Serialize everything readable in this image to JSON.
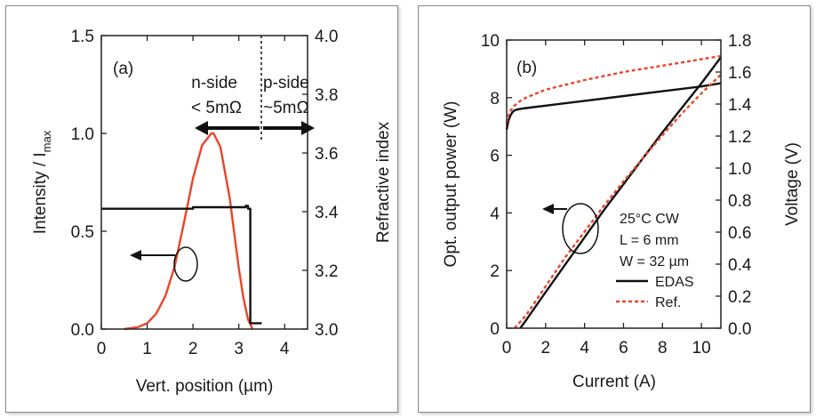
{
  "colors": {
    "red": "#e8462a",
    "black": "#111111",
    "axis": "#333333"
  },
  "chart_data": [
    {
      "type": "line",
      "panel_label": "(a)",
      "xlabel": "Vert. position (µm)",
      "ylabel_main": "Intensity / I",
      "ylabel_sub": "max",
      "y2label": "Refractive index",
      "xlim": [
        0,
        4.5
      ],
      "ylim": [
        0,
        1.5
      ],
      "y2lim": [
        3.0,
        4.0
      ],
      "xticks": [
        "0",
        "1",
        "2",
        "3",
        "4"
      ],
      "yticks": [
        "0.0",
        "0.5",
        "1.0",
        "1.5"
      ],
      "y2ticks": [
        "3.0",
        "3.2",
        "3.4",
        "3.6",
        "3.8",
        "4.0"
      ],
      "annotations": {
        "n_side": "n-side",
        "n_value": "< 5mΩ",
        "p_side": "p-side",
        "p_value": "~5mΩ"
      },
      "series": [
        {
          "axis": "left",
          "color": "#e8462a",
          "x": [
            0.5,
            0.8,
            1.0,
            1.2,
            1.4,
            1.6,
            1.8,
            2.0,
            2.2,
            2.4,
            2.45,
            2.6,
            2.8,
            3.0,
            3.1,
            3.2,
            3.3
          ],
          "y": [
            0.0,
            0.01,
            0.03,
            0.08,
            0.17,
            0.32,
            0.54,
            0.77,
            0.94,
            1.0,
            1.0,
            0.93,
            0.67,
            0.31,
            0.16,
            0.05,
            0.0
          ]
        },
        {
          "axis": "right",
          "color": "#111111",
          "x": [
            0,
            2.0,
            2.0,
            3.15,
            3.15,
            3.2,
            3.2,
            3.25,
            3.25,
            3.5
          ],
          "y": [
            3.41,
            3.41,
            3.415,
            3.415,
            3.42,
            3.42,
            3.41,
            3.41,
            3.02,
            3.02
          ]
        }
      ]
    },
    {
      "type": "line",
      "panel_label": "(b)",
      "xlabel": "Current (A)",
      "ylabel": "Opt. output power (W)",
      "y2label": "Voltage (V)",
      "xlim": [
        0,
        11
      ],
      "ylim": [
        0,
        10
      ],
      "y2lim": [
        0,
        1.8
      ],
      "xticks": [
        "0",
        "2",
        "4",
        "6",
        "8",
        "10"
      ],
      "yticks": [
        "0",
        "2",
        "4",
        "6",
        "8",
        "10"
      ],
      "y2ticks": [
        "0.0",
        "0.2",
        "0.4",
        "0.6",
        "0.8",
        "1.0",
        "1.2",
        "1.4",
        "1.6",
        "1.8"
      ],
      "legend_text": [
        "25°C CW",
        "L = 6 mm",
        "W = 32 µm"
      ],
      "legend": [
        {
          "name": "EDAS",
          "color": "#111111",
          "dash": "solid"
        },
        {
          "name": "Ref.",
          "color": "#e8462a",
          "dash": "dashed"
        }
      ],
      "series": [
        {
          "name": "EDAS",
          "quantity": "power",
          "axis": "left",
          "color": "#111111",
          "dash": "solid",
          "x": [
            0.7,
            1,
            2,
            3,
            4,
            5,
            6,
            7,
            8,
            9,
            10,
            11
          ],
          "y": [
            0.0,
            0.28,
            1.25,
            2.2,
            3.15,
            4.1,
            5.0,
            5.9,
            6.8,
            7.65,
            8.5,
            9.4
          ]
        },
        {
          "name": "EDAS",
          "quantity": "voltage",
          "axis": "right",
          "color": "#111111",
          "dash": "solid",
          "x": [
            0,
            0.1,
            0.2,
            0.3,
            0.4,
            0.5,
            0.7,
            1,
            2,
            4,
            6,
            8,
            10,
            11
          ],
          "y": [
            1.24,
            1.3,
            1.33,
            1.35,
            1.36,
            1.365,
            1.37,
            1.375,
            1.39,
            1.42,
            1.45,
            1.48,
            1.51,
            1.53
          ]
        },
        {
          "name": "Ref.",
          "quantity": "power",
          "axis": "left",
          "color": "#e8462a",
          "dash": "dashed",
          "x": [
            0.4,
            1,
            2,
            3,
            4,
            5,
            6,
            7,
            8,
            9,
            10,
            11
          ],
          "y": [
            0.0,
            0.45,
            1.45,
            2.45,
            3.35,
            4.25,
            5.1,
            5.9,
            6.7,
            7.45,
            8.15,
            8.8
          ]
        },
        {
          "name": "Ref.",
          "quantity": "voltage",
          "axis": "right",
          "color": "#e8462a",
          "dash": "dashed",
          "x": [
            0,
            0.1,
            0.2,
            0.4,
            0.7,
            1,
            2,
            3,
            4,
            6,
            8,
            10,
            11
          ],
          "y": [
            1.28,
            1.33,
            1.36,
            1.39,
            1.42,
            1.44,
            1.49,
            1.52,
            1.55,
            1.6,
            1.64,
            1.68,
            1.7
          ]
        }
      ]
    }
  ]
}
